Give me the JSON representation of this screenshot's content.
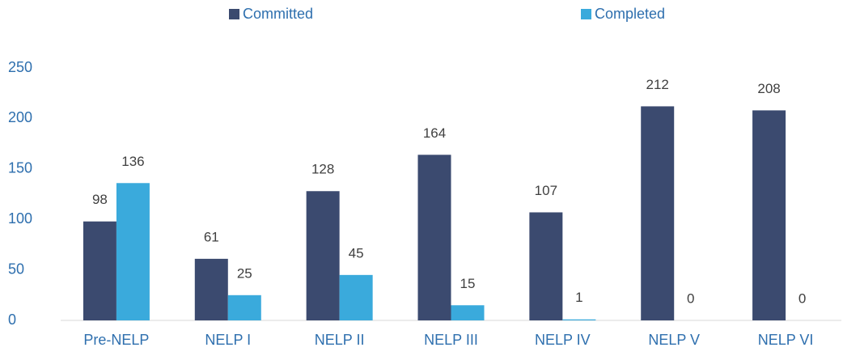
{
  "chart_data": {
    "type": "bar",
    "categories": [
      "Pre-NELP",
      "NELP I",
      "NELP II",
      "NELP III",
      "NELP IV",
      "NELP V",
      "NELP VI"
    ],
    "series": [
      {
        "name": "Committed",
        "color": "#3b4a6f",
        "values": [
          98,
          61,
          128,
          164,
          107,
          212,
          208
        ]
      },
      {
        "name": "Completed",
        "color": "#3aaadc",
        "values": [
          136,
          25,
          45,
          15,
          1,
          0,
          0
        ]
      }
    ],
    "ylim": [
      0,
      250
    ],
    "yticks": [
      0,
      50,
      100,
      150,
      200,
      250
    ],
    "grid": false,
    "legend": "top"
  }
}
